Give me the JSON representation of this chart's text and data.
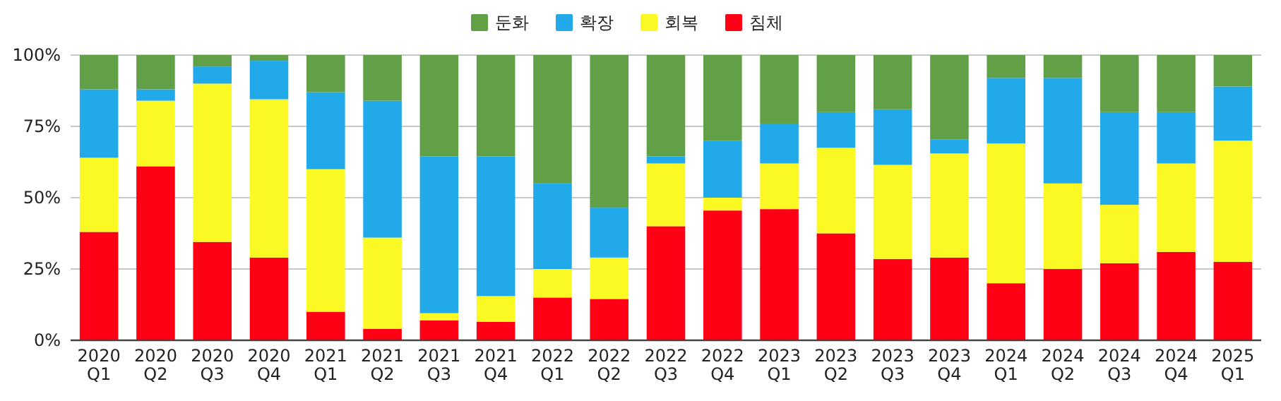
{
  "chart_data": {
    "type": "bar",
    "stacked": true,
    "categories": [
      "2020 Q1",
      "2020 Q2",
      "2020 Q3",
      "2020 Q4",
      "2021 Q1",
      "2021 Q2",
      "2021 Q3",
      "2021 Q4",
      "2022 Q1",
      "2022 Q2",
      "2022 Q3",
      "2022 Q4",
      "2023 Q1",
      "2023 Q2",
      "2023 Q3",
      "2023 Q4",
      "2024 Q1",
      "2024 Q2",
      "2024 Q3",
      "2024 Q4",
      "2025 Q1"
    ],
    "series": [
      {
        "name": "침체",
        "color": "#ff0015",
        "values": [
          38,
          61,
          34.5,
          29,
          10,
          4,
          7,
          6.5,
          15,
          14.5,
          40,
          45.5,
          46,
          37.5,
          28.5,
          29,
          20,
          25,
          27,
          31,
          27.5
        ]
      },
      {
        "name": "회복",
        "color": "#fbf923",
        "values": [
          26,
          23,
          55.5,
          55.5,
          50,
          32,
          2.5,
          9,
          10,
          14.5,
          22,
          4.5,
          16,
          30,
          33,
          36.5,
          49,
          30,
          20.5,
          31,
          42.5
        ]
      },
      {
        "name": "확장",
        "color": "#22a9e9",
        "values": [
          24,
          4,
          6,
          13.5,
          27,
          48,
          55,
          49,
          30,
          17.5,
          2.5,
          20,
          14,
          12.5,
          19.5,
          5,
          23,
          37,
          32.5,
          18,
          19
        ]
      },
      {
        "name": "둔화",
        "color": "#61a046",
        "values": [
          12,
          12,
          4,
          2,
          13,
          16,
          35.5,
          35.5,
          45,
          53.5,
          35.5,
          30,
          24,
          20,
          19,
          29.5,
          8,
          8,
          20,
          20,
          11
        ]
      }
    ],
    "ylim": [
      0,
      100
    ],
    "yticks": [
      {
        "value": 0,
        "label": "0%"
      },
      {
        "value": 25,
        "label": "25%"
      },
      {
        "value": 50,
        "label": "50%"
      },
      {
        "value": 75,
        "label": "75%"
      },
      {
        "value": 100,
        "label": "100%"
      }
    ],
    "grid": "y",
    "legend": "top"
  }
}
